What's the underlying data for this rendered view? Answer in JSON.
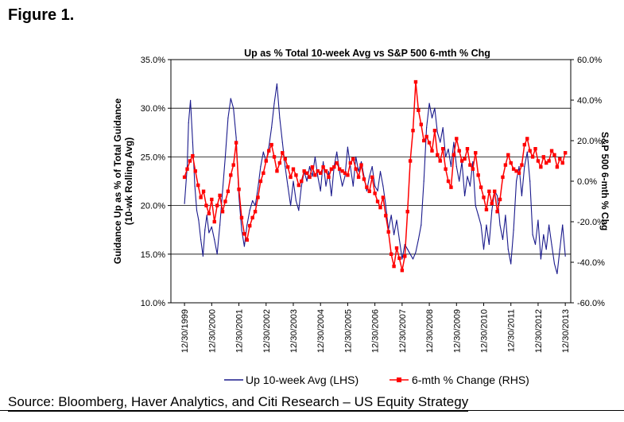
{
  "figure_label": "Figure 1.",
  "source": "Source: Bloomberg, Haver Analytics, and Citi Research – US Equity Strategy",
  "colors": {
    "lhs_series": "#1a1a8c",
    "rhs_series": "#ff0000",
    "grid": "#000000"
  },
  "chart_data": {
    "type": "line",
    "title": "Up as % Total 10-week Avg vs S&P 500 6-mth % Chg",
    "ylabel_left": [
      "Guidance Up as % of Total Guidance",
      "(10-wk Rolling Avg)"
    ],
    "ylabel_right": "S&P 500 6-mth % Chg",
    "ylim_left": [
      10,
      35
    ],
    "ylim_right": [
      -60,
      60
    ],
    "left_ticks": [
      "10.0%",
      "15.0%",
      "20.0%",
      "25.0%",
      "30.0%",
      "35.0%"
    ],
    "right_ticks": [
      "-60.0%",
      "-40.0%",
      "-20.0%",
      "0.0%",
      "20.0%",
      "40.0%",
      "60.0%"
    ],
    "x_ticks": [
      "12/30/1999",
      "12/30/2000",
      "12/30/2001",
      "12/30/2002",
      "12/30/2003",
      "12/30/2004",
      "12/30/2005",
      "12/30/2006",
      "12/30/2007",
      "12/30/2008",
      "12/30/2009",
      "12/30/2010",
      "12/30/2011",
      "12/30/2012",
      "12/30/2013"
    ],
    "xlim": [
      1999.5,
      2014.2
    ],
    "legend_position": "bottom",
    "series": [
      {
        "name": "Up 10-week Avg (LHS)",
        "axis": "left",
        "x": [
          2000.0,
          2000.1,
          2000.15,
          2000.22,
          2000.3,
          2000.38,
          2000.45,
          2000.52,
          2000.6,
          2000.68,
          2000.75,
          2000.82,
          2000.9,
          2001.0,
          2001.1,
          2001.2,
          2001.3,
          2001.4,
          2001.5,
          2001.6,
          2001.7,
          2001.8,
          2001.9,
          2002.0,
          2002.1,
          2002.2,
          2002.3,
          2002.4,
          2002.5,
          2002.6,
          2002.7,
          2002.8,
          2002.9,
          2003.0,
          2003.1,
          2003.2,
          2003.3,
          2003.4,
          2003.5,
          2003.6,
          2003.7,
          2003.8,
          2003.9,
          2004.0,
          2004.1,
          2004.2,
          2004.3,
          2004.4,
          2004.5,
          2004.6,
          2004.7,
          2004.8,
          2004.9,
          2005.0,
          2005.1,
          2005.2,
          2005.3,
          2005.4,
          2005.5,
          2005.6,
          2005.7,
          2005.8,
          2005.9,
          2006.0,
          2006.1,
          2006.2,
          2006.3,
          2006.4,
          2006.5,
          2006.6,
          2006.7,
          2006.8,
          2006.9,
          2007.0,
          2007.1,
          2007.2,
          2007.3,
          2007.4,
          2007.5,
          2007.6,
          2007.7,
          2007.8,
          2007.9,
          2008.0,
          2008.1,
          2008.2,
          2008.3,
          2008.4,
          2008.5,
          2008.6,
          2008.7,
          2008.8,
          2008.9,
          2009.0,
          2009.1,
          2009.2,
          2009.3,
          2009.4,
          2009.5,
          2009.6,
          2009.7,
          2009.8,
          2009.9,
          2010.0,
          2010.1,
          2010.2,
          2010.3,
          2010.4,
          2010.5,
          2010.6,
          2010.7,
          2010.8,
          2010.9,
          2011.0,
          2011.1,
          2011.2,
          2011.3,
          2011.4,
          2011.5,
          2011.6,
          2011.7,
          2011.8,
          2011.9,
          2012.0,
          2012.1,
          2012.2,
          2012.3,
          2012.4,
          2012.5,
          2012.6,
          2012.7,
          2012.8,
          2012.9,
          2013.0,
          2013.1,
          2013.2,
          2013.3,
          2013.4,
          2013.5,
          2013.6,
          2013.7,
          2013.8,
          2013.9,
          2014.0
        ],
        "values": [
          20.2,
          24.0,
          28.5,
          30.8,
          26.5,
          22.0,
          19.5,
          18.5,
          16.5,
          14.8,
          17.5,
          19.0,
          17.2,
          17.8,
          16.5,
          15.0,
          18.0,
          21.5,
          25.0,
          29.0,
          31.0,
          30.0,
          27.0,
          21.0,
          17.5,
          15.8,
          18.0,
          19.5,
          20.5,
          20.0,
          21.8,
          24.0,
          25.5,
          24.5,
          26.0,
          28.0,
          30.5,
          32.5,
          29.0,
          26.5,
          24.0,
          22.0,
          20.0,
          22.5,
          20.5,
          19.5,
          22.0,
          23.5,
          22.5,
          24.0,
          23.0,
          25.0,
          23.0,
          21.5,
          24.5,
          22.0,
          23.5,
          21.0,
          24.0,
          25.5,
          23.5,
          22.0,
          23.0,
          26.0,
          24.0,
          22.0,
          25.0,
          23.5,
          24.5,
          23.0,
          21.5,
          23.0,
          24.0,
          22.0,
          21.5,
          23.5,
          22.0,
          20.0,
          17.5,
          19.0,
          17.0,
          18.5,
          16.5,
          14.5,
          16.0,
          15.5,
          15.0,
          14.5,
          15.2,
          16.5,
          18.0,
          22.5,
          28.0,
          30.5,
          29.0,
          30.0,
          27.5,
          26.5,
          28.0,
          25.0,
          25.8,
          24.0,
          26.5,
          24.0,
          22.5,
          24.5,
          21.0,
          23.0,
          22.0,
          24.5,
          20.0,
          19.0,
          18.0,
          15.5,
          18.0,
          16.0,
          19.5,
          21.5,
          21.0,
          18.0,
          16.5,
          19.0,
          15.5,
          14.0,
          17.5,
          22.5,
          24.0,
          21.0,
          24.0,
          25.5,
          22.5,
          17.0,
          16.0,
          18.5,
          14.5,
          17.0,
          15.5,
          18.0,
          16.0,
          14.0,
          13.0,
          15.5,
          18.0,
          14.8
        ]
      },
      {
        "name": "6-mth % Change (RHS)",
        "axis": "right",
        "x": [
          2000.0,
          2000.1,
          2000.2,
          2000.3,
          2000.4,
          2000.5,
          2000.6,
          2000.7,
          2000.8,
          2000.9,
          2001.0,
          2001.1,
          2001.2,
          2001.3,
          2001.4,
          2001.5,
          2001.6,
          2001.7,
          2001.8,
          2001.9,
          2002.0,
          2002.1,
          2002.2,
          2002.3,
          2002.4,
          2002.5,
          2002.6,
          2002.7,
          2002.8,
          2002.9,
          2003.0,
          2003.1,
          2003.2,
          2003.3,
          2003.4,
          2003.5,
          2003.6,
          2003.7,
          2003.8,
          2003.9,
          2004.0,
          2004.1,
          2004.2,
          2004.3,
          2004.4,
          2004.5,
          2004.6,
          2004.7,
          2004.8,
          2004.9,
          2005.0,
          2005.1,
          2005.2,
          2005.3,
          2005.4,
          2005.5,
          2005.6,
          2005.7,
          2005.8,
          2005.9,
          2006.0,
          2006.1,
          2006.2,
          2006.3,
          2006.4,
          2006.5,
          2006.6,
          2006.7,
          2006.8,
          2006.9,
          2007.0,
          2007.1,
          2007.2,
          2007.3,
          2007.4,
          2007.5,
          2007.6,
          2007.7,
          2007.8,
          2007.9,
          2008.0,
          2008.1,
          2008.2,
          2008.3,
          2008.4,
          2008.5,
          2008.6,
          2008.7,
          2008.8,
          2008.9,
          2009.0,
          2009.1,
          2009.2,
          2009.3,
          2009.4,
          2009.5,
          2009.6,
          2009.7,
          2009.8,
          2009.9,
          2010.0,
          2010.1,
          2010.2,
          2010.3,
          2010.4,
          2010.5,
          2010.6,
          2010.7,
          2010.8,
          2010.9,
          2011.0,
          2011.1,
          2011.2,
          2011.3,
          2011.4,
          2011.5,
          2011.6,
          2011.7,
          2011.8,
          2011.9,
          2012.0,
          2012.1,
          2012.2,
          2012.3,
          2012.4,
          2012.5,
          2012.6,
          2012.7,
          2012.8,
          2012.9,
          2013.0,
          2013.1,
          2013.2,
          2013.3,
          2013.4,
          2013.5,
          2013.6,
          2013.7,
          2013.8,
          2013.9,
          2014.0
        ],
        "values": [
          2.0,
          6.0,
          10.0,
          12.5,
          5.0,
          -2.0,
          -8.0,
          -5.0,
          -12.0,
          -16.0,
          -9.0,
          -20.0,
          -12.0,
          -7.0,
          -15.0,
          -10.0,
          -5.0,
          3.0,
          8.0,
          19.0,
          -4.0,
          -18.0,
          -26.0,
          -29.0,
          -22.0,
          -18.0,
          -15.0,
          -8.0,
          0.0,
          4.0,
          10.0,
          15.0,
          18.0,
          12.0,
          5.0,
          9.0,
          14.0,
          11.0,
          7.0,
          2.0,
          6.0,
          3.0,
          -2.0,
          0.0,
          5.0,
          4.0,
          2.0,
          7.0,
          3.0,
          5.0,
          4.0,
          7.0,
          5.0,
          2.0,
          6.0,
          7.0,
          9.0,
          6.0,
          5.0,
          4.0,
          3.0,
          9.0,
          11.0,
          6.0,
          2.0,
          8.0,
          1.0,
          -3.0,
          -5.0,
          2.0,
          -6.0,
          -10.0,
          -13.0,
          -8.0,
          -17.0,
          -25.0,
          -36.0,
          -42.0,
          -33.0,
          -38.0,
          -44.0,
          -37.0,
          -15.0,
          10.0,
          25.0,
          49.0,
          35.0,
          28.0,
          20.0,
          22.0,
          19.0,
          15.0,
          25.0,
          13.0,
          10.0,
          16.0,
          6.0,
          0.0,
          -3.0,
          13.0,
          21.0,
          15.0,
          10.0,
          11.0,
          16.0,
          8.0,
          6.0,
          14.0,
          3.0,
          -3.0,
          -8.0,
          -14.0,
          -5.0,
          -11.0,
          -5.0,
          -15.0,
          -9.0,
          2.0,
          8.0,
          13.0,
          9.0,
          6.0,
          5.0,
          4.0,
          8.0,
          18.0,
          21.0,
          15.0,
          12.0,
          16.0,
          10.0,
          7.0,
          12.0,
          9.0,
          10.0,
          15.0,
          13.0,
          7.0,
          11.0,
          9.0,
          14.0
        ]
      }
    ]
  }
}
